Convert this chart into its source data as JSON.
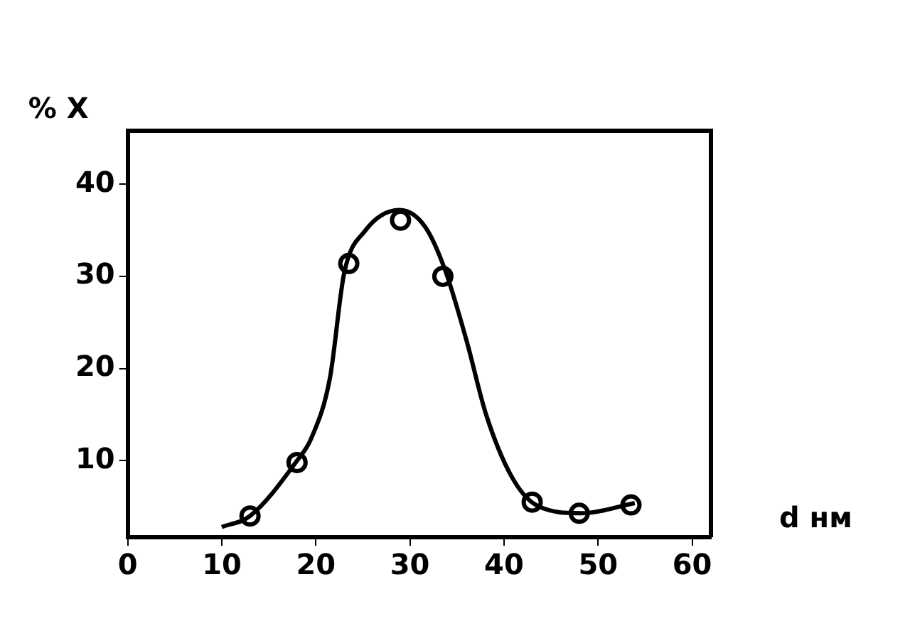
{
  "chart_data": {
    "type": "scatter",
    "xlabel": "d нм",
    "ylabel": "% X",
    "xlim": [
      0,
      62
    ],
    "xticks": [
      0,
      10,
      20,
      30,
      40,
      50,
      60
    ],
    "ylim": [
      1.7,
      45.8
    ],
    "yticks": [
      10,
      20,
      30,
      40
    ],
    "grid": false,
    "legend": false,
    "marker": "circle",
    "series": [
      {
        "type": "line",
        "color": "#000000",
        "marker": "none",
        "line_style": "solid",
        "x": [
          10,
          13,
          18,
          19.5,
          21.5,
          23,
          25.2,
          28.9,
          31.6,
          33.7,
          36,
          38.1,
          40.8,
          43.4,
          48.2,
          53.9
        ],
        "values": [
          2.8,
          4,
          10,
          12.4,
          19,
          30.3,
          34.9,
          37.2,
          35.4,
          30.8,
          23.1,
          15,
          8.3,
          5.2,
          4.3,
          5.4
        ]
      },
      {
        "color": "#000000",
        "x": [
          13,
          18,
          23.5,
          29,
          33.5,
          43,
          48,
          53.5
        ],
        "values": [
          4,
          9.8,
          31.4,
          36.1,
          30,
          5.5,
          4.3,
          5.2
        ]
      }
    ]
  }
}
